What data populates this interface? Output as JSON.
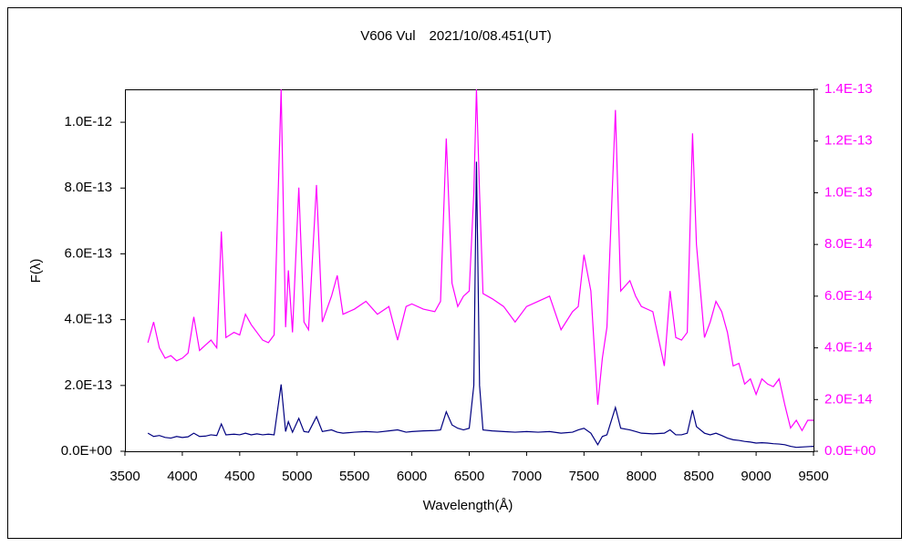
{
  "chart_data": {
    "type": "line",
    "title": "V606 Vul　2021/10/08.451(UT)",
    "x_label": "Wavelength(Å)",
    "y_label": "F(λ)",
    "x": [
      3700,
      3750,
      3800,
      3850,
      3900,
      3950,
      4000,
      4050,
      4100,
      4150,
      4200,
      4250,
      4300,
      4340,
      4380,
      4450,
      4500,
      4550,
      4600,
      4650,
      4700,
      4750,
      4800,
      4861,
      4900,
      4924,
      4960,
      5015,
      5060,
      5100,
      5169,
      5220,
      5300,
      5350,
      5400,
      5500,
      5600,
      5700,
      5800,
      5876,
      5950,
      6000,
      6100,
      6200,
      6250,
      6300,
      6350,
      6400,
      6450,
      6500,
      6540,
      6563,
      6590,
      6620,
      6700,
      6800,
      6900,
      7000,
      7100,
      7200,
      7300,
      7400,
      7450,
      7500,
      7560,
      7620,
      7660,
      7700,
      7774,
      7820,
      7900,
      7950,
      8000,
      8100,
      8200,
      8250,
      8300,
      8350,
      8400,
      8446,
      8480,
      8550,
      8600,
      8650,
      8700,
      8750,
      8800,
      8850,
      8900,
      8950,
      9000,
      9050,
      9100,
      9150,
      9200,
      9250,
      9300,
      9350,
      9400,
      9450,
      9500
    ],
    "series": [
      {
        "color": "#000080",
        "axis": "y",
        "values": [
          5.5e-14,
          4.5e-14,
          4.8e-14,
          4.2e-14,
          4e-14,
          4.5e-14,
          4.2e-14,
          4.4e-14,
          5.5e-14,
          4.5e-14,
          4.6e-14,
          5e-14,
          4.8e-14,
          8.3e-14,
          5e-14,
          5.2e-14,
          5e-14,
          5.5e-14,
          5e-14,
          5.3e-14,
          5e-14,
          5.2e-14,
          5e-14,
          2.03e-13,
          6e-14,
          9e-14,
          5.8e-14,
          1e-13,
          6e-14,
          5.8e-14,
          1.05e-13,
          6e-14,
          6.5e-14,
          5.8e-14,
          5.5e-14,
          5.8e-14,
          6e-14,
          5.8e-14,
          6.2e-14,
          6.5e-14,
          5.8e-14,
          6e-14,
          6.2e-14,
          6.3e-14,
          6.5e-14,
          1.2e-13,
          8e-14,
          7e-14,
          6.5e-14,
          7e-14,
          2e-13,
          8.8e-13,
          2e-13,
          6.5e-14,
          6.2e-14,
          6e-14,
          5.8e-14,
          6e-14,
          5.8e-14,
          6e-14,
          5.5e-14,
          5.8e-14,
          6.5e-14,
          7e-14,
          5.5e-14,
          2e-14,
          4.5e-14,
          5e-14,
          1.33e-13,
          7e-14,
          6.5e-14,
          6e-14,
          5.5e-14,
          5.3e-14,
          5.5e-14,
          6.5e-14,
          5e-14,
          5e-14,
          5.5e-14,
          1.25e-13,
          7.5e-14,
          5.5e-14,
          5e-14,
          5.5e-14,
          4.8e-14,
          4e-14,
          3.5e-14,
          3.3e-14,
          3e-14,
          2.8e-14,
          2.5e-14,
          2.6e-14,
          2.5e-14,
          2.3e-14,
          2.2e-14,
          2e-14,
          1.5e-14,
          1.2e-14,
          1.3e-14,
          1.4e-14,
          1.5e-14
        ]
      },
      {
        "color": "#ff00ff",
        "axis": "y2",
        "values": [
          4.2e-14,
          5e-14,
          4e-14,
          3.6e-14,
          3.7e-14,
          3.5e-14,
          3.6e-14,
          3.8e-14,
          5.2e-14,
          3.9e-14,
          4.1e-14,
          4.3e-14,
          4e-14,
          8.5e-14,
          4.4e-14,
          4.6e-14,
          4.5e-14,
          5.3e-14,
          4.9e-14,
          4.6e-14,
          4.3e-14,
          4.2e-14,
          4.5e-14,
          1.4e-13,
          4.8e-14,
          7e-14,
          4.6e-14,
          1.02e-13,
          5e-14,
          4.7e-14,
          1.03e-13,
          5e-14,
          6e-14,
          6.8e-14,
          5.3e-14,
          5.5e-14,
          5.8e-14,
          5.3e-14,
          5.6e-14,
          4.3e-14,
          5.6e-14,
          5.7e-14,
          5.5e-14,
          5.4e-14,
          5.8e-14,
          1.21e-13,
          6.5e-14,
          5.6e-14,
          6e-14,
          6.2e-14,
          1e-13,
          1.4e-13,
          1e-13,
          6.1e-14,
          5.9e-14,
          5.6e-14,
          5e-14,
          5.6e-14,
          5.8e-14,
          6e-14,
          4.7e-14,
          5.4e-14,
          5.6e-14,
          7.6e-14,
          6.2e-14,
          1.8e-14,
          3.6e-14,
          4.8e-14,
          1.32e-13,
          6.2e-14,
          6.6e-14,
          6e-14,
          5.6e-14,
          5.4e-14,
          3.3e-14,
          6.2e-14,
          4.4e-14,
          4.3e-14,
          4.6e-14,
          1.23e-13,
          8e-14,
          4.4e-14,
          5e-14,
          5.8e-14,
          5.4e-14,
          4.6e-14,
          3.3e-14,
          3.4e-14,
          2.6e-14,
          2.8e-14,
          2.2e-14,
          2.8e-14,
          2.6e-14,
          2.5e-14,
          2.8e-14,
          1.8e-14,
          9e-15,
          1.2e-14,
          8e-15,
          1.2e-14,
          1.2e-14
        ]
      }
    ],
    "xlim": [
      3500,
      9500
    ],
    "xticks": [
      3500,
      4000,
      4500,
      5000,
      5500,
      6000,
      6500,
      7000,
      7500,
      8000,
      8500,
      9000,
      9500
    ],
    "ylim": [
      0,
      1.1e-12
    ],
    "yticks": [
      {
        "value": 0,
        "label": "0.0E+00"
      },
      {
        "value": 2e-13,
        "label": "2.0E-13"
      },
      {
        "value": 4e-13,
        "label": "4.0E-13"
      },
      {
        "value": 6e-13,
        "label": "6.0E-13"
      },
      {
        "value": 8e-13,
        "label": "8.0E-13"
      },
      {
        "value": 1e-12,
        "label": "1.0E-12"
      }
    ],
    "y2lim": [
      0,
      1.4e-13
    ],
    "y2ticks": [
      {
        "value": 0,
        "label": "0.0E+00"
      },
      {
        "value": 2e-14,
        "label": "2.0E-14"
      },
      {
        "value": 4e-14,
        "label": "4.0E-14"
      },
      {
        "value": 6e-14,
        "label": "6.0E-14"
      },
      {
        "value": 8e-14,
        "label": "8.0E-14"
      },
      {
        "value": 1e-13,
        "label": "1.0E-13"
      },
      {
        "value": 1.2e-13,
        "label": "1.2E-13"
      },
      {
        "value": 1.4e-13,
        "label": "1.4E-13"
      }
    ],
    "y2_color": "#ff00ff",
    "grid": false
  }
}
